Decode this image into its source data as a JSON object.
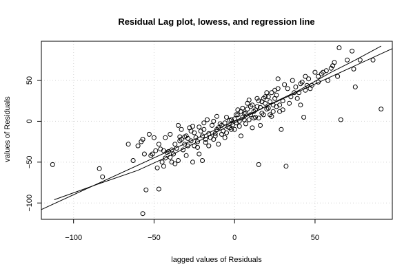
{
  "chart_data": {
    "type": "scatter",
    "title": "Residual Lag plot, lowess, and regression line",
    "xlabel": "lagged values of Residuals",
    "ylabel": "values of Residuals",
    "xlim": [
      -120,
      98
    ],
    "ylim": [
      -120,
      98
    ],
    "xticks": [
      -100,
      -50,
      0,
      50
    ],
    "yticks": [
      -100,
      -50,
      0,
      50
    ],
    "xtick_labels": [
      "−100",
      "−50",
      "0",
      "50"
    ],
    "ytick_labels": [
      "−100",
      "−50",
      "0",
      "50"
    ],
    "grid": true,
    "regression_line": {
      "x": [
        -120,
        98
      ],
      "y": [
        -108,
        89
      ]
    },
    "lowess_line": {
      "x": [
        -112,
        -85,
        -60,
        -40,
        -20,
        0,
        20,
        40,
        60,
        75,
        91
      ],
      "y": [
        -96,
        -77,
        -60,
        -42,
        -22,
        -2,
        19,
        38,
        60,
        75,
        92
      ]
    },
    "points": [
      [
        -113,
        -53
      ],
      [
        -84,
        -58
      ],
      [
        -82,
        -68
      ],
      [
        -66,
        -28
      ],
      [
        -63,
        -48
      ],
      [
        -58,
        -25
      ],
      [
        -57,
        -22
      ],
      [
        -57,
        -113
      ],
      [
        -55,
        -84
      ],
      [
        -53,
        -16
      ],
      [
        -52,
        -42
      ],
      [
        -51,
        -40
      ],
      [
        -49,
        -36
      ],
      [
        -48,
        -57
      ],
      [
        -47,
        -83
      ],
      [
        -46,
        -34
      ],
      [
        -45,
        -50
      ],
      [
        -44,
        -36
      ],
      [
        -43,
        -45
      ],
      [
        -42,
        -38
      ],
      [
        -41,
        -37
      ],
      [
        -40,
        -44
      ],
      [
        -39,
        -50
      ],
      [
        -38,
        -40
      ],
      [
        -37,
        -52
      ],
      [
        -36,
        -33
      ],
      [
        -35,
        -48
      ],
      [
        -35,
        -5
      ],
      [
        -34,
        -19
      ],
      [
        -34,
        -24
      ],
      [
        -33,
        -22
      ],
      [
        -32,
        -35
      ],
      [
        -31,
        -28
      ],
      [
        -30,
        -42
      ],
      [
        -29,
        -30
      ],
      [
        -28,
        -8
      ],
      [
        -27,
        -24
      ],
      [
        -26,
        -50
      ],
      [
        -25,
        -30
      ],
      [
        -24,
        -20
      ],
      [
        -23,
        -25
      ],
      [
        -22,
        -40
      ],
      [
        -21,
        -12
      ],
      [
        -20,
        -48
      ],
      [
        -20,
        -18
      ],
      [
        -19,
        -10
      ],
      [
        -18,
        -26
      ],
      [
        -17,
        2
      ],
      [
        -16,
        -15
      ],
      [
        -15,
        -20
      ],
      [
        -14,
        -5
      ],
      [
        -13,
        0
      ],
      [
        -12,
        -18
      ],
      [
        -11,
        -10
      ],
      [
        -10,
        -8
      ],
      [
        -9,
        -3
      ],
      [
        -8,
        -5
      ],
      [
        -7,
        -12
      ],
      [
        -6,
        -2
      ],
      [
        -5,
        5
      ],
      [
        -4,
        -7
      ],
      [
        -3,
        1
      ],
      [
        -2,
        -10
      ],
      [
        -1,
        -4
      ],
      [
        0,
        3
      ],
      [
        1,
        -2
      ],
      [
        2,
        8
      ],
      [
        3,
        0
      ],
      [
        4,
        12
      ],
      [
        5,
        5
      ],
      [
        6,
        10
      ],
      [
        7,
        -3
      ],
      [
        8,
        15
      ],
      [
        9,
        2
      ],
      [
        10,
        8
      ],
      [
        11,
        20
      ],
      [
        12,
        12
      ],
      [
        13,
        5
      ],
      [
        14,
        18
      ],
      [
        15,
        25
      ],
      [
        16,
        -5
      ],
      [
        17,
        10
      ],
      [
        18,
        28
      ],
      [
        19,
        22
      ],
      [
        20,
        15
      ],
      [
        21,
        30
      ],
      [
        22,
        8
      ],
      [
        23,
        35
      ],
      [
        24,
        20
      ],
      [
        25,
        38
      ],
      [
        26,
        18
      ],
      [
        27,
        52
      ],
      [
        28,
        12
      ],
      [
        29,
        -10
      ],
      [
        30,
        25
      ],
      [
        31,
        45
      ],
      [
        32,
        -55
      ],
      [
        33,
        40
      ],
      [
        35,
        30
      ],
      [
        36,
        50
      ],
      [
        38,
        42
      ],
      [
        40,
        35
      ],
      [
        41,
        20
      ],
      [
        42,
        48
      ],
      [
        43,
        5
      ],
      [
        44,
        55
      ],
      [
        45,
        44
      ],
      [
        47,
        40
      ],
      [
        50,
        60
      ],
      [
        52,
        48
      ],
      [
        54,
        58
      ],
      [
        57,
        62
      ],
      [
        60,
        65
      ],
      [
        62,
        72
      ],
      [
        64,
        55
      ],
      [
        65,
        90
      ],
      [
        66,
        2
      ],
      [
        70,
        75
      ],
      [
        73,
        86
      ],
      [
        74,
        64
      ],
      [
        75,
        42
      ],
      [
        78,
        75
      ],
      [
        86,
        75
      ],
      [
        91,
        15
      ],
      [
        15,
        -53
      ],
      [
        16,
        17
      ],
      [
        -10,
        -28
      ],
      [
        -12,
        -15
      ],
      [
        -18,
        -22
      ],
      [
        -22,
        -7
      ],
      [
        -25,
        -14
      ],
      [
        -27,
        -12
      ],
      [
        -29,
        -21
      ],
      [
        -31,
        -19
      ],
      [
        -44,
        -55
      ],
      [
        -39,
        -35
      ],
      [
        -6,
        -20
      ],
      [
        -3,
        -8
      ],
      [
        0,
        -10
      ],
      [
        2,
        14
      ],
      [
        4,
        -18
      ],
      [
        6,
        2
      ],
      [
        8,
        22
      ],
      [
        10,
        18
      ],
      [
        12,
        4
      ],
      [
        14,
        28
      ],
      [
        18,
        8
      ],
      [
        20,
        35
      ],
      [
        22,
        24
      ],
      [
        24,
        12
      ],
      [
        26,
        32
      ],
      [
        28,
        20
      ],
      [
        30,
        14
      ],
      [
        34,
        22
      ],
      [
        37,
        35
      ],
      [
        39,
        28
      ],
      [
        41,
        46
      ],
      [
        44,
        38
      ],
      [
        46,
        52
      ],
      [
        48,
        44
      ],
      [
        52,
        55
      ],
      [
        55,
        60
      ],
      [
        58,
        50
      ],
      [
        61,
        68
      ],
      [
        -60,
        -30
      ],
      [
        -56,
        -40
      ],
      [
        -50,
        -20
      ],
      [
        -47,
        -28
      ],
      [
        -43,
        -20
      ],
      [
        -40,
        -16
      ],
      [
        -37,
        -28
      ],
      [
        -33,
        -10
      ],
      [
        -30,
        -18
      ],
      [
        -26,
        -6
      ],
      [
        -23,
        -32
      ],
      [
        -19,
        -2
      ],
      [
        -16,
        -30
      ],
      [
        -13,
        -22
      ],
      [
        -11,
        6
      ],
      [
        -8,
        -16
      ],
      [
        -5,
        -14
      ],
      [
        -2,
        2
      ],
      [
        1,
        8
      ],
      [
        3,
        -6
      ],
      [
        5,
        16
      ],
      [
        7,
        10
      ],
      [
        9,
        26
      ],
      [
        11,
        -8
      ],
      [
        13,
        14
      ],
      [
        15,
        4
      ],
      [
        17,
        24
      ],
      [
        19,
        30
      ],
      [
        21,
        16
      ],
      [
        23,
        6
      ],
      [
        25,
        28
      ],
      [
        27,
        40
      ]
    ]
  }
}
